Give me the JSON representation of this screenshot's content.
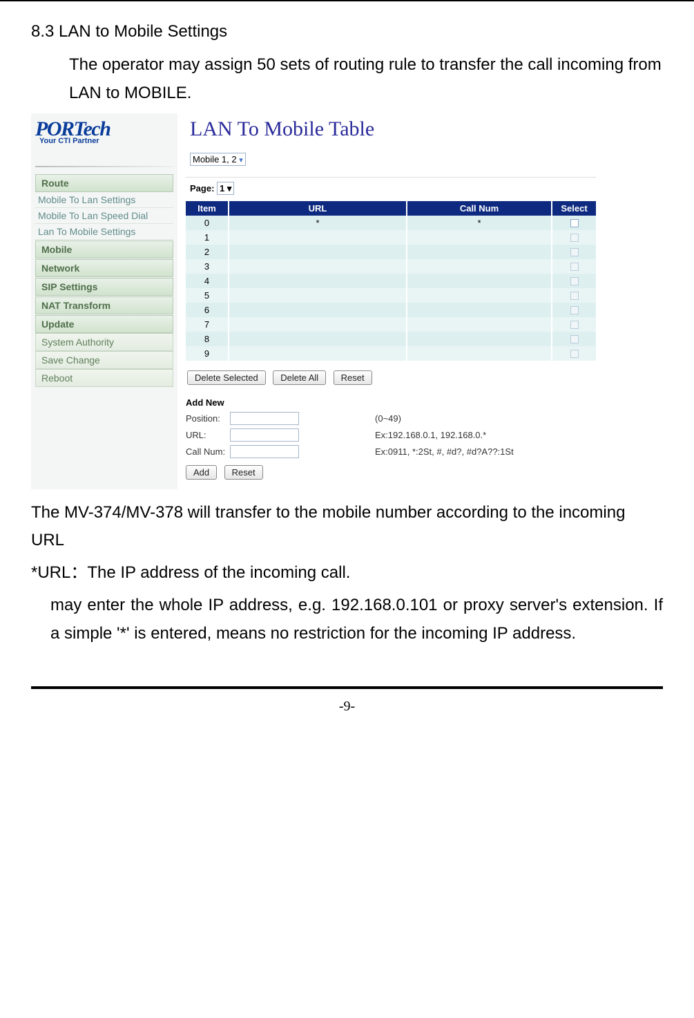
{
  "section_title": "8.3 LAN to Mobile Settings",
  "intro_text": "The operator may assign 50 sets of  routing rule to transfer the call incoming from LAN to MOBILE.",
  "logo": {
    "top": "PORTech",
    "sub": "Your CTI Partner"
  },
  "nav": {
    "route_header": "Route",
    "route_items": [
      "Mobile To Lan Settings",
      "Mobile To Lan Speed Dial",
      "Lan To Mobile Settings"
    ],
    "mobile": "Mobile",
    "network": "Network",
    "sip": "SIP Settings",
    "nat": "NAT Transform",
    "update": "Update",
    "single_items": [
      "System Authority",
      "Save Change",
      "Reboot"
    ]
  },
  "main": {
    "title": "LAN To Mobile Table",
    "mobile_select": "Mobile 1, 2",
    "page_label": "Page:",
    "page_select": "1",
    "table": {
      "headers": [
        "Item",
        "URL",
        "Call Num",
        "Select"
      ],
      "rows": [
        {
          "item": "0",
          "url": "*",
          "call": "*",
          "checkbox_enabled": true
        },
        {
          "item": "1",
          "url": "",
          "call": "",
          "checkbox_enabled": false
        },
        {
          "item": "2",
          "url": "",
          "call": "",
          "checkbox_enabled": false
        },
        {
          "item": "3",
          "url": "",
          "call": "",
          "checkbox_enabled": false
        },
        {
          "item": "4",
          "url": "",
          "call": "",
          "checkbox_enabled": false
        },
        {
          "item": "5",
          "url": "",
          "call": "",
          "checkbox_enabled": false
        },
        {
          "item": "6",
          "url": "",
          "call": "",
          "checkbox_enabled": false
        },
        {
          "item": "7",
          "url": "",
          "call": "",
          "checkbox_enabled": false
        },
        {
          "item": "8",
          "url": "",
          "call": "",
          "checkbox_enabled": false
        },
        {
          "item": "9",
          "url": "",
          "call": "",
          "checkbox_enabled": false
        }
      ]
    },
    "buttons": {
      "delete_selected": "Delete Selected",
      "delete_all": "Delete All",
      "reset": "Reset"
    },
    "addnew": {
      "title": "Add New",
      "position_label": "Position:",
      "position_hint": "(0~49)",
      "url_label": "URL:",
      "url_hint": "Ex:192.168.0.1,  192.168.0.*",
      "call_label": "Call Num:",
      "call_hint": "Ex:0911,  *:2St,  #, #d?, #d?A??:1St",
      "add_btn": "Add",
      "reset_btn": "Reset"
    }
  },
  "outro": {
    "line1": "The MV-374/MV-378 will transfer to the mobile number according to the incoming URL",
    "line2": "*URL：The IP address of the incoming call.",
    "line3": "may enter the whole IP address, e.g. 192.168.0.101 or proxy server's extension. If a simple '*' is entered, means no restriction for the incoming IP address."
  },
  "page_number": "-9-"
}
